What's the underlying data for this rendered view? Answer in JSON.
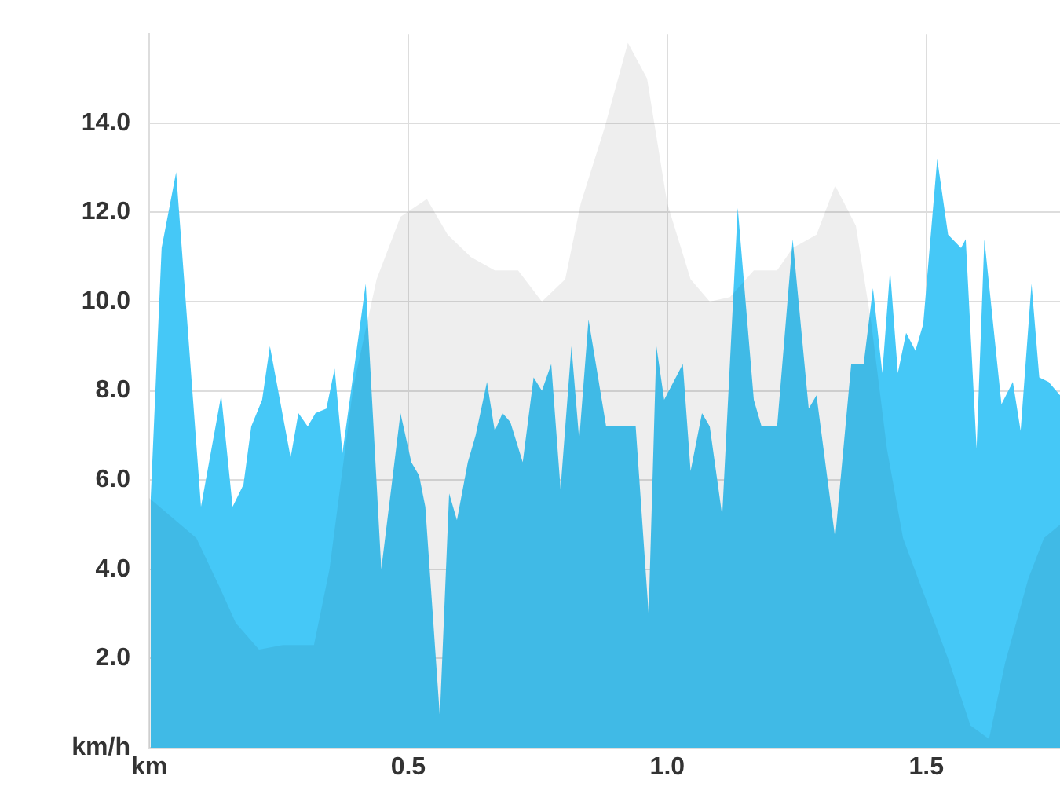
{
  "chart_data": {
    "type": "area",
    "marker": "none",
    "grid": true,
    "xlim": [
      0,
      1.758
    ],
    "xticks": [
      {
        "value": 0,
        "label": "km"
      },
      {
        "value": 0.5,
        "label": "0.5"
      },
      {
        "value": 1.0,
        "label": "1.0"
      },
      {
        "value": 1.5,
        "label": "1.5"
      }
    ],
    "ylim": [
      0,
      16
    ],
    "yticks": [
      {
        "value": 0,
        "label": "km/h"
      },
      {
        "value": 2,
        "label": "2.0"
      },
      {
        "value": 4,
        "label": "4.0"
      },
      {
        "value": 6,
        "label": "6.0"
      },
      {
        "value": 8,
        "label": "8.0"
      },
      {
        "value": 10,
        "label": "10.0"
      },
      {
        "value": 12,
        "label": "12.0"
      },
      {
        "value": 14,
        "label": "14.0"
      }
    ],
    "series": [
      {
        "color": "#45c8f7",
        "x": [
          0.003,
          0.024,
          0.052,
          0.1,
          0.139,
          0.161,
          0.182,
          0.197,
          0.218,
          0.233,
          0.273,
          0.288,
          0.306,
          0.321,
          0.342,
          0.358,
          0.373,
          0.418,
          0.448,
          0.485,
          0.506,
          0.521,
          0.533,
          0.561,
          0.579,
          0.594,
          0.615,
          0.63,
          0.652,
          0.667,
          0.682,
          0.697,
          0.721,
          0.742,
          0.758,
          0.776,
          0.794,
          0.815,
          0.83,
          0.848,
          0.882,
          0.939,
          0.964,
          0.979,
          0.994,
          1.03,
          1.045,
          1.067,
          1.082,
          1.106,
          1.136,
          1.167,
          1.182,
          1.212,
          1.242,
          1.273,
          1.288,
          1.324,
          1.355,
          1.379,
          1.397,
          1.415,
          1.43,
          1.445,
          1.461,
          1.479,
          1.494,
          1.521,
          1.542,
          1.567,
          1.576,
          1.597,
          1.612,
          1.645,
          1.667,
          1.682,
          1.703,
          1.718,
          1.736,
          1.758
        ],
        "values": [
          5.6,
          11.2,
          12.9,
          5.4,
          7.9,
          5.4,
          5.9,
          7.2,
          7.8,
          9.0,
          6.5,
          7.5,
          7.2,
          7.5,
          7.6,
          8.5,
          6.6,
          10.4,
          4.0,
          7.5,
          6.4,
          6.1,
          5.4,
          0.7,
          5.7,
          5.1,
          6.4,
          7.0,
          8.2,
          7.1,
          7.5,
          7.3,
          6.4,
          8.3,
          8.0,
          8.6,
          5.8,
          9.0,
          6.9,
          9.6,
          7.2,
          7.2,
          3.0,
          9.0,
          7.8,
          8.6,
          6.2,
          7.5,
          7.2,
          5.2,
          12.1,
          7.8,
          7.2,
          7.2,
          11.4,
          7.6,
          7.9,
          4.7,
          8.6,
          8.6,
          10.3,
          8.4,
          10.7,
          8.4,
          9.3,
          8.9,
          9.5,
          13.2,
          11.5,
          11.2,
          11.4,
          6.7,
          11.4,
          7.7,
          8.2,
          7.1,
          10.4,
          8.3,
          8.2,
          7.9
        ]
      },
      {
        "color": "#eeeeee",
        "x": [
          0,
          0.091,
          0.136,
          0.167,
          0.212,
          0.258,
          0.318,
          0.348,
          0.394,
          0.439,
          0.485,
          0.536,
          0.576,
          0.621,
          0.667,
          0.712,
          0.758,
          0.803,
          0.833,
          0.879,
          0.924,
          0.961,
          1.0,
          1.045,
          1.082,
          1.121,
          1.167,
          1.212,
          1.242,
          1.288,
          1.324,
          1.364,
          1.394,
          1.424,
          1.455,
          1.5,
          1.545,
          1.585,
          1.621,
          1.652,
          1.697,
          1.727,
          1.758
        ],
        "values": [
          5.6,
          4.7,
          3.6,
          2.8,
          2.2,
          2.3,
          2.3,
          4.0,
          8.1,
          10.5,
          11.9,
          12.3,
          11.5,
          11.0,
          10.7,
          10.7,
          10.0,
          10.5,
          12.2,
          13.9,
          15.8,
          15.0,
          12.2,
          10.5,
          10.0,
          10.1,
          10.7,
          10.7,
          11.2,
          11.5,
          12.6,
          11.7,
          9.5,
          6.7,
          4.7,
          3.3,
          1.9,
          0.5,
          0.2,
          1.9,
          3.8,
          4.7,
          5.0
        ]
      }
    ]
  }
}
